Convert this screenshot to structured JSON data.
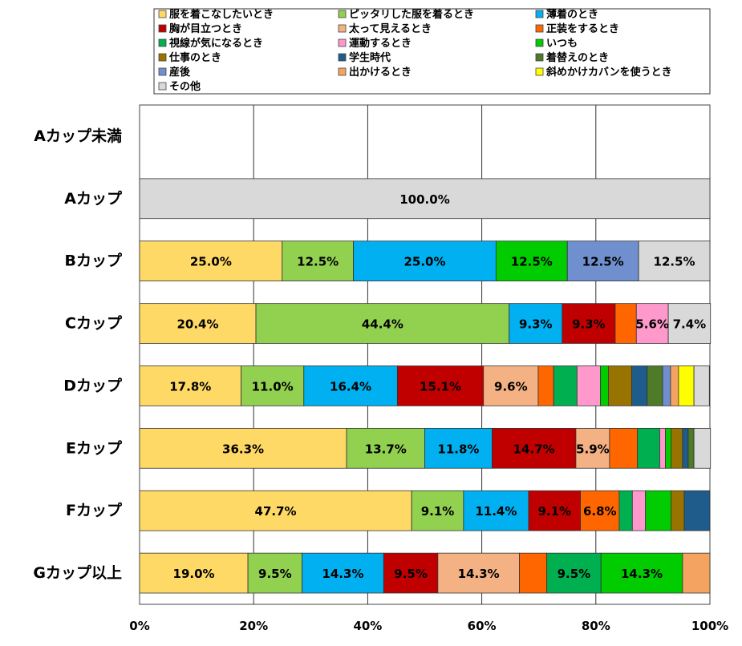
{
  "chart_data": {
    "type": "bar",
    "orientation": "horizontal",
    "stacked": "percent",
    "xlim": [
      0,
      100
    ],
    "x_ticks": [
      "0%",
      "20%",
      "40%",
      "60%",
      "80%",
      "100%"
    ],
    "grid": true,
    "legend_position": "top",
    "categories": [
      "Aカップ未満",
      "Aカップ",
      "Bカップ",
      "Cカップ",
      "Dカップ",
      "Eカップ",
      "Fカップ",
      "Gカップ以上"
    ],
    "series": [
      {
        "name": "服を着こなしたいとき",
        "color": "#FFD966",
        "values": [
          0,
          0,
          25.0,
          20.4,
          17.8,
          36.3,
          47.7,
          19.0
        ]
      },
      {
        "name": "ピッタリした服を着るとき",
        "color": "#92D050",
        "values": [
          0,
          0,
          12.5,
          44.4,
          11.0,
          13.7,
          9.1,
          9.5
        ]
      },
      {
        "name": "薄着のとき",
        "color": "#00B0F0",
        "values": [
          0,
          0,
          25.0,
          9.3,
          16.4,
          11.8,
          11.4,
          14.3
        ]
      },
      {
        "name": "胸が目立つとき",
        "color": "#C00000",
        "values": [
          0,
          0,
          0,
          9.3,
          15.1,
          14.7,
          9.1,
          9.5
        ]
      },
      {
        "name": "太って見えるとき",
        "color": "#F4B183",
        "values": [
          0,
          0,
          0,
          0,
          9.6,
          5.9,
          0,
          14.3
        ]
      },
      {
        "name": "正装をするとき",
        "color": "#FF6600",
        "values": [
          0,
          0,
          0,
          3.7,
          2.7,
          4.9,
          6.8,
          4.8
        ]
      },
      {
        "name": "視線が気になるとき",
        "color": "#00B050",
        "values": [
          0,
          0,
          0,
          0,
          4.1,
          3.9,
          2.3,
          9.5
        ]
      },
      {
        "name": "運動するとき",
        "color": "#FF99CC",
        "values": [
          0,
          0,
          0,
          5.6,
          4.1,
          1.0,
          2.3,
          0
        ]
      },
      {
        "name": "いつも",
        "color": "#00CC00",
        "values": [
          0,
          0,
          12.5,
          0,
          1.4,
          1.0,
          4.5,
          14.3
        ]
      },
      {
        "name": "仕事のとき",
        "color": "#997300",
        "values": [
          0,
          0,
          0,
          0,
          4.1,
          2.0,
          2.3,
          0
        ]
      },
      {
        "name": "学生時代",
        "color": "#1F5C8B",
        "values": [
          0,
          0,
          0,
          0,
          2.7,
          1.0,
          4.5,
          0
        ]
      },
      {
        "name": "着替えのとき",
        "color": "#4F7A28",
        "values": [
          0,
          0,
          0,
          0,
          2.7,
          1.0,
          0,
          0
        ]
      },
      {
        "name": "産後",
        "color": "#6F8FCF",
        "values": [
          0,
          0,
          12.5,
          0,
          1.4,
          0,
          0,
          0
        ]
      },
      {
        "name": "出かけるとき",
        "color": "#F4A460",
        "values": [
          0,
          0,
          0,
          0,
          1.4,
          0,
          0,
          4.8
        ]
      },
      {
        "name": "斜めかけカバンを使うとき",
        "color": "#FFFF00",
        "values": [
          0,
          0,
          0,
          0,
          2.7,
          0,
          0,
          0
        ]
      },
      {
        "name": "その他",
        "color": "#D9D9D9",
        "values": [
          0,
          100.0,
          12.5,
          7.4,
          2.7,
          2.9,
          0,
          0
        ]
      }
    ],
    "data_labels": [
      [],
      [
        {
          "series": 15,
          "text": "100.0%"
        }
      ],
      [
        {
          "series": 0,
          "text": "25.0%"
        },
        {
          "series": 1,
          "text": "12.5%"
        },
        {
          "series": 2,
          "text": "25.0%"
        },
        {
          "series": 8,
          "text": "12.5%"
        },
        {
          "series": 12,
          "text": "12.5%"
        },
        {
          "series": 15,
          "text": "12.5%"
        }
      ],
      [
        {
          "series": 0,
          "text": "20.4%"
        },
        {
          "series": 1,
          "text": "44.4%"
        },
        {
          "series": 2,
          "text": "9.3%"
        },
        {
          "series": 3,
          "text": "9.3%"
        },
        {
          "series": 7,
          "text": "5.6%"
        },
        {
          "series": 15,
          "text": "7.4%"
        }
      ],
      [
        {
          "series": 0,
          "text": "17.8%"
        },
        {
          "series": 1,
          "text": "11.0%"
        },
        {
          "series": 2,
          "text": "16.4%"
        },
        {
          "series": 3,
          "text": "15.1%"
        },
        {
          "series": 4,
          "text": "9.6%"
        }
      ],
      [
        {
          "series": 0,
          "text": "36.3%"
        },
        {
          "series": 1,
          "text": "13.7%"
        },
        {
          "series": 2,
          "text": "11.8%"
        },
        {
          "series": 3,
          "text": "14.7%"
        },
        {
          "series": 4,
          "text": "5.9%"
        }
      ],
      [
        {
          "series": 0,
          "text": "47.7%"
        },
        {
          "series": 1,
          "text": "9.1%"
        },
        {
          "series": 2,
          "text": "11.4%"
        },
        {
          "series": 3,
          "text": "9.1%"
        },
        {
          "series": 5,
          "text": "6.8%"
        }
      ],
      [
        {
          "series": 0,
          "text": "19.0%"
        },
        {
          "series": 1,
          "text": "9.5%"
        },
        {
          "series": 2,
          "text": "14.3%"
        },
        {
          "series": 3,
          "text": "9.5%"
        },
        {
          "series": 4,
          "text": "14.3%"
        },
        {
          "series": 6,
          "text": "9.5%"
        },
        {
          "series": 8,
          "text": "14.3%"
        }
      ]
    ]
  }
}
